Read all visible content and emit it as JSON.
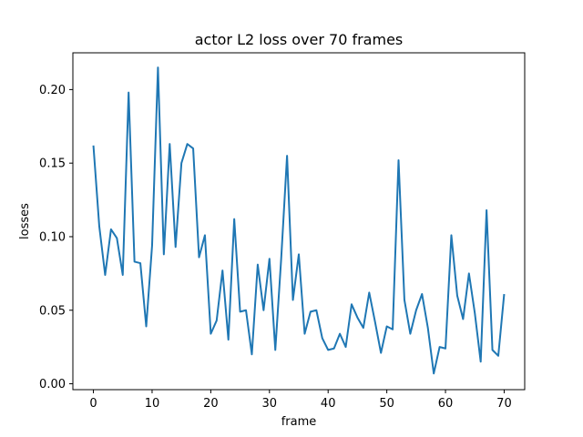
{
  "chart_data": {
    "type": "line",
    "title": "actor L2 loss over 70 frames",
    "xlabel": "frame",
    "ylabel": "losses",
    "xlim": [
      -3.5,
      73.5
    ],
    "ylim": [
      -0.004,
      0.225
    ],
    "xticks": [
      0,
      10,
      20,
      30,
      40,
      50,
      60,
      70
    ],
    "xtick_labels": [
      "0",
      "10",
      "20",
      "30",
      "40",
      "50",
      "60",
      "70"
    ],
    "yticks": [
      0.0,
      0.05,
      0.1,
      0.15,
      0.2
    ],
    "ytick_labels": [
      "0.00",
      "0.05",
      "0.10",
      "0.15",
      "0.20"
    ],
    "grid": false,
    "color": "#1f77b4",
    "series": [
      {
        "x": [
          0,
          1,
          2,
          3,
          4,
          5,
          6,
          7,
          8,
          9,
          10,
          11,
          12,
          13,
          14,
          15,
          16,
          17,
          18,
          19,
          20,
          21,
          22,
          23,
          24,
          25,
          26,
          27,
          28,
          29,
          30,
          31,
          32,
          33,
          34,
          35,
          36,
          37,
          38,
          39,
          40,
          41,
          42,
          43,
          44,
          45,
          46,
          47,
          48,
          49,
          50,
          51,
          52,
          53,
          54,
          55,
          56,
          57,
          58,
          59,
          60,
          61,
          62,
          63,
          64,
          65,
          66,
          67,
          68,
          69,
          70
        ],
        "values": [
          0.162,
          0.107,
          0.074,
          0.105,
          0.099,
          0.074,
          0.198,
          0.083,
          0.082,
          0.039,
          0.094,
          0.215,
          0.088,
          0.163,
          0.093,
          0.15,
          0.163,
          0.16,
          0.086,
          0.101,
          0.034,
          0.043,
          0.077,
          0.03,
          0.112,
          0.049,
          0.05,
          0.02,
          0.081,
          0.05,
          0.085,
          0.023,
          0.085,
          0.155,
          0.057,
          0.088,
          0.034,
          0.049,
          0.05,
          0.031,
          0.023,
          0.024,
          0.034,
          0.025,
          0.054,
          0.045,
          0.038,
          0.062,
          0.042,
          0.021,
          0.039,
          0.037,
          0.152,
          0.057,
          0.034,
          0.05,
          0.061,
          0.038,
          0.007,
          0.025,
          0.024,
          0.101,
          0.06,
          0.044,
          0.075,
          0.048,
          0.015,
          0.118,
          0.023,
          0.019,
          0.061
        ]
      }
    ]
  }
}
